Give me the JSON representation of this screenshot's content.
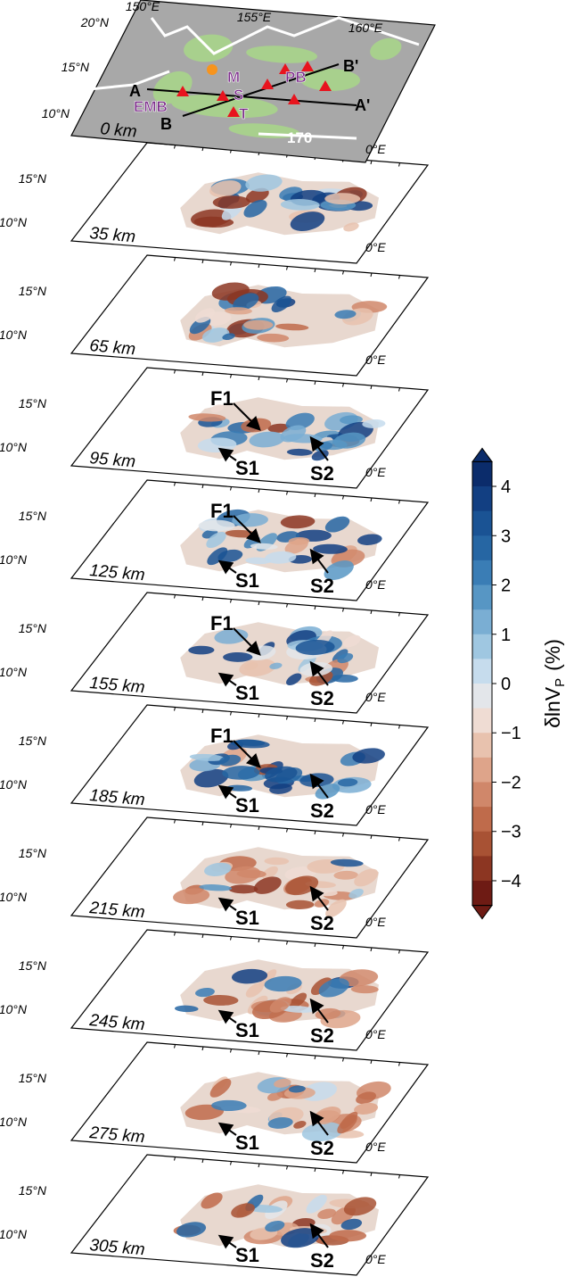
{
  "map": {
    "lon_labels": [
      "150°E",
      "155°E",
      "160°E"
    ],
    "lat_labels": [
      "20°N",
      "15°N",
      "10°N"
    ],
    "features": [
      "M",
      "PB",
      "S",
      "EMB",
      "T"
    ],
    "profiles": [
      "A",
      "A'",
      "B",
      "B'"
    ],
    "depth": "0 km",
    "line_label": "170",
    "lon_cut_label": "0°E"
  },
  "slices": [
    {
      "depth": "35 km",
      "lat_labels": [
        "15°N",
        "10°N"
      ],
      "lon_cut_label": "0°E"
    },
    {
      "depth": "65 km",
      "lat_labels": [
        "15°N",
        "10°N"
      ],
      "lon_cut_label": "0°E"
    },
    {
      "depth": "95 km",
      "lat_labels": [
        "15°N",
        "10°N"
      ],
      "lon_cut_label": "0°E",
      "arrows": [
        "F1",
        "S1",
        "S2"
      ]
    },
    {
      "depth": "125 km",
      "lat_labels": [
        "15°N",
        "10°N"
      ],
      "lon_cut_label": "0°E",
      "arrows": [
        "F1",
        "S1",
        "S2"
      ]
    },
    {
      "depth": "155 km",
      "lat_labels": [
        "15°N",
        "10°N"
      ],
      "lon_cut_label": "0°E",
      "arrows": [
        "F1",
        "S1",
        "S2"
      ]
    },
    {
      "depth": "185 km",
      "lat_labels": [
        "15°N",
        "10°N"
      ],
      "lon_cut_label": "0°E",
      "arrows": [
        "F1",
        "S1",
        "S2"
      ]
    },
    {
      "depth": "215 km",
      "lat_labels": [
        "15°N",
        "10°N"
      ],
      "lon_cut_label": "0°E",
      "arrows": [
        "S1",
        "S2"
      ]
    },
    {
      "depth": "245 km",
      "lat_labels": [
        "15°N",
        "10°N"
      ],
      "lon_cut_label": "0°E",
      "arrows": [
        "S1",
        "S2"
      ]
    },
    {
      "depth": "275 km",
      "lat_labels": [
        "15°N",
        "10°N"
      ],
      "lon_cut_label": "0°E",
      "arrows": [
        "S1",
        "S2"
      ]
    },
    {
      "depth": "305 km",
      "lat_labels": [
        "15°N",
        "10°N"
      ],
      "lon_cut_label": "0°E",
      "arrows": [
        "S1",
        "S2"
      ]
    }
  ],
  "colorbar": {
    "label": "δlnV",
    "label_sub": "P",
    "unit": "(%)",
    "lim": [
      -4.5,
      4.5
    ],
    "ticks": [
      4,
      3,
      2,
      1,
      0,
      {
        "value": -1,
        "label": "−1"
      },
      {
        "value": -2,
        "label": "−2"
      },
      {
        "value": -3,
        "label": "−3"
      },
      {
        "value": -4,
        "label": "−4"
      }
    ],
    "colors": [
      "#0b2c6b",
      "#123f82",
      "#1a5394",
      "#2666a3",
      "#3a7db5",
      "#5796c4",
      "#7aaed3",
      "#9fc7e1",
      "#c6dced",
      "#e3e6ea",
      "#efdcd3",
      "#e8c2ae",
      "#dea48a",
      "#d0876a",
      "#bf6b4b",
      "#a85234",
      "#8c3622",
      "#6e1b14"
    ]
  }
}
